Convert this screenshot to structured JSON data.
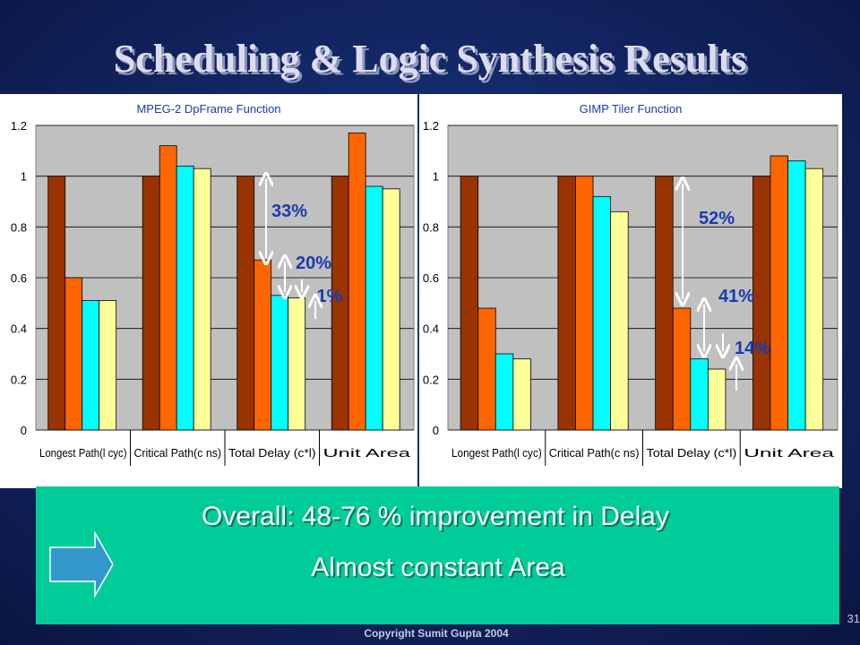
{
  "slide": {
    "title": "Scheduling & Logic Synthesis Results",
    "box_lines": [
      "Overall: 48-76 % improvement in Delay",
      "Almost constant Area"
    ],
    "footer": "Copyright Sumit Gupta 2004",
    "page_number": "31"
  },
  "chart_data": [
    {
      "type": "bar",
      "title": "MPEG-2 DpFrame Function",
      "categories": [
        "Longest Path(l cyc)",
        "Critical Path(c ns)",
        "Total Delay (c*l)",
        "Unit Area"
      ],
      "series": [
        {
          "color": "#993300",
          "values": [
            1,
            1,
            1,
            1
          ]
        },
        {
          "color": "#ff6600",
          "values": [
            0.6,
            1.12,
            0.67,
            1.17
          ]
        },
        {
          "color": "#00ffff",
          "values": [
            0.51,
            1.04,
            0.53,
            0.96
          ]
        },
        {
          "color": "#ffff99",
          "values": [
            0.51,
            1.03,
            0.52,
            0.95
          ]
        }
      ],
      "ylim": [
        0,
        1.2
      ],
      "yticks": [
        0,
        0.2,
        0.4,
        0.6,
        0.8,
        1,
        1.2
      ],
      "grid": true,
      "annotations": [
        "33%",
        "20%",
        "1%"
      ]
    },
    {
      "type": "bar",
      "title": "GIMP Tiler Function",
      "categories": [
        "Longest Path(l cyc)",
        "Critical Path(c ns)",
        "Total Delay (c*l)",
        "Unit Area"
      ],
      "series": [
        {
          "color": "#993300",
          "values": [
            1,
            1,
            1,
            1
          ]
        },
        {
          "color": "#ff6600",
          "values": [
            0.48,
            1.0,
            0.48,
            1.08
          ]
        },
        {
          "color": "#00ffff",
          "values": [
            0.3,
            0.92,
            0.28,
            1.06
          ]
        },
        {
          "color": "#ffff99",
          "values": [
            0.28,
            0.86,
            0.24,
            1.03
          ]
        }
      ],
      "ylim": [
        0,
        1.2
      ],
      "yticks": [
        0,
        0.2,
        0.4,
        0.6,
        0.8,
        1,
        1.2
      ],
      "grid": true,
      "annotations": [
        "52%",
        "41%",
        "14%"
      ]
    }
  ]
}
